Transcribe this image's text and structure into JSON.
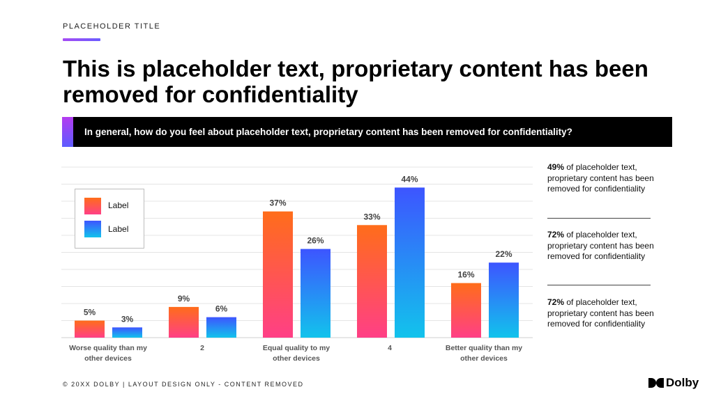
{
  "kicker": "PLACEHOLDER TITLE",
  "headline": "This is placeholder text, proprietary content has been removed for confidentiality",
  "question": "In general, how do you feel about placeholder text, proprietary content has been removed for confidentiality?",
  "legend": {
    "label_1": "Label",
    "label_2": "Label"
  },
  "x_labels": {
    "c1_line1": "Worse quality than my",
    "c1_line2": "other devices",
    "c2": "2",
    "c3_line1": "Equal quality to my",
    "c3_line2": "other devices",
    "c4": "4",
    "c5_line1": "Better quality than my",
    "c5_line2": "other devices"
  },
  "chart_data": {
    "type": "bar",
    "categories": [
      "Worse quality than my other devices",
      "2",
      "Equal quality to my other devices",
      "4",
      "Better quality than my other devices"
    ],
    "series": [
      {
        "name": "Label",
        "values": [
          5,
          9,
          37,
          33,
          16
        ],
        "value_labels": [
          "5%",
          "9%",
          "37%",
          "33%",
          "16%"
        ],
        "gradient": [
          "#ff6d1a",
          "#ff3f86"
        ]
      },
      {
        "name": "Label",
        "values": [
          3,
          6,
          26,
          44,
          22
        ],
        "value_labels": [
          "3%",
          "6%",
          "26%",
          "44%",
          "22%"
        ],
        "gradient": [
          "#3d55ff",
          "#12c3ec"
        ]
      }
    ],
    "ylim": [
      0,
      50
    ],
    "grid": true,
    "legend_position": "top-left"
  },
  "side_notes": [
    {
      "stat": "49%",
      "text": " of placeholder text, proprietary content has been removed for confidentiality"
    },
    {
      "stat": "72%",
      "text": " of placeholder text, proprietary content has been removed for confidentiality"
    },
    {
      "stat": "72%",
      "text": " of placeholder text, proprietary content has been removed for confidentiality"
    }
  ],
  "footer": "© 20XX DOLBY | LAYOUT DESIGN ONLY - CONTENT REMOVED",
  "logo": {
    "text": "Dolby",
    "icon": "dolby-double-d-icon"
  }
}
